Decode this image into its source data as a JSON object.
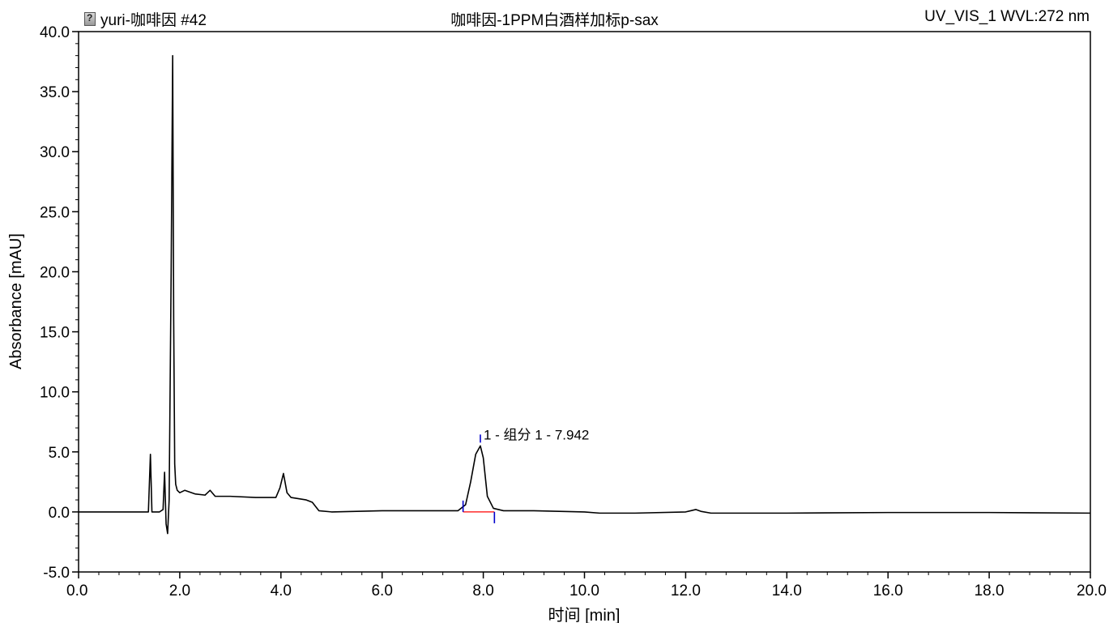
{
  "header": {
    "left_title": "yuri-咖啡因 #42",
    "center_title": "咖啡因-1PPM白酒样加标p-sax",
    "right_title": "UV_VIS_1 WVL:272 nm",
    "icon": "document-icon"
  },
  "chart_data": {
    "type": "line",
    "xlabel": "时间 [min]",
    "ylabel": "Absorbance [mAU]",
    "xlim": [
      0,
      20
    ],
    "ylim": [
      -5,
      40
    ],
    "x_ticks": [
      0,
      2,
      4,
      6,
      8,
      10,
      12,
      14,
      16,
      18,
      20
    ],
    "x_tick_labels": [
      "0.0",
      "2.0",
      "4.0",
      "6.0",
      "8.0",
      "10.0",
      "12.0",
      "14.0",
      "16.0",
      "18.0",
      "20.0"
    ],
    "y_ticks": [
      -5,
      0,
      5,
      10,
      15,
      20,
      25,
      30,
      35,
      40
    ],
    "y_tick_labels": [
      "-5.0",
      "0.0",
      "5.0",
      "10.0",
      "15.0",
      "20.0",
      "25.0",
      "30.0",
      "35.0",
      "40.0"
    ],
    "grid": false,
    "series": [
      {
        "color": "#000000",
        "x": [
          0.0,
          1.0,
          1.38,
          1.42,
          1.45,
          1.48,
          1.6,
          1.67,
          1.7,
          1.73,
          1.76,
          1.79,
          1.83,
          1.86,
          1.88,
          1.9,
          1.92,
          1.95,
          2.0,
          2.1,
          2.3,
          2.5,
          2.6,
          2.7,
          3.0,
          3.5,
          3.9,
          3.98,
          4.05,
          4.12,
          4.2,
          4.5,
          4.62,
          4.75,
          5.0,
          6.0,
          7.0,
          7.5,
          7.65,
          7.75,
          7.85,
          7.942,
          8.0,
          8.08,
          8.2,
          8.4,
          9.0,
          10.0,
          10.3,
          11.0,
          12.0,
          12.1,
          12.2,
          12.3,
          12.5,
          14.0,
          16.0,
          18.0,
          20.0
        ],
        "y": [
          0.0,
          0.0,
          0.0,
          4.8,
          0.0,
          0.0,
          0.0,
          0.2,
          3.3,
          -1.0,
          -1.8,
          1.0,
          20.0,
          38.0,
          16.0,
          4.0,
          2.3,
          1.8,
          1.6,
          1.8,
          1.5,
          1.4,
          1.8,
          1.3,
          1.3,
          1.2,
          1.2,
          2.0,
          3.2,
          1.6,
          1.2,
          1.0,
          0.8,
          0.1,
          0.0,
          0.1,
          0.1,
          0.1,
          0.6,
          2.5,
          4.8,
          5.5,
          4.5,
          1.3,
          0.3,
          0.1,
          0.1,
          0.0,
          -0.1,
          -0.1,
          0.0,
          0.1,
          0.2,
          0.05,
          -0.1,
          -0.1,
          -0.05,
          -0.05,
          -0.1
        ]
      }
    ],
    "peaks": [
      {
        "label": "1 - 组分 1 - 7.942",
        "rt": 7.942,
        "height": 5.5,
        "start": 7.6,
        "end": 8.22,
        "baseline_color": "#ff0000",
        "marker_color": "#0000cc"
      }
    ]
  }
}
